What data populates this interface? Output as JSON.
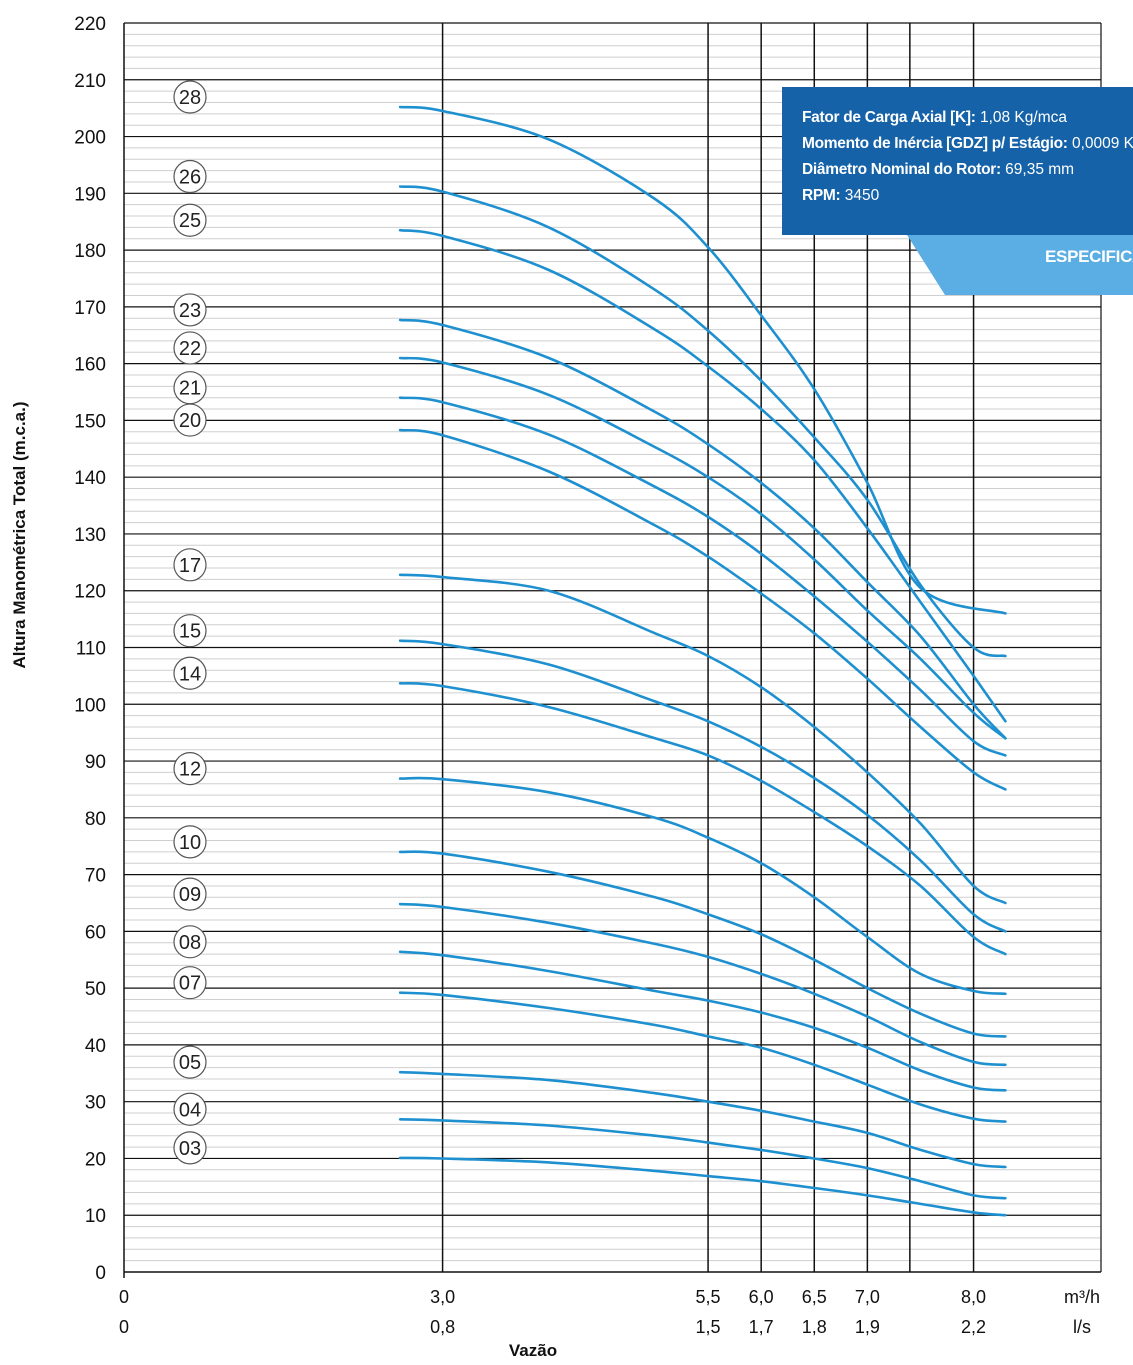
{
  "chart_data": {
    "type": "line",
    "ylabel": "Altura Manométrica Total (m.c.a.)",
    "xlabel": "Vazão",
    "ylim": [
      0,
      220
    ],
    "xlim": [
      0,
      9.2
    ],
    "y_ticks": [
      0,
      10,
      20,
      30,
      40,
      50,
      60,
      70,
      80,
      90,
      100,
      110,
      120,
      130,
      140,
      150,
      160,
      170,
      180,
      190,
      200,
      210,
      220
    ],
    "x_unit_primary": "m³/h",
    "x_unit_secondary": "l/s",
    "x_ticks": [
      {
        "value": 0,
        "label": "0",
        "label2": "0"
      },
      {
        "value": 3.0,
        "label": "3,0",
        "label2": "0,8"
      },
      {
        "value": 5.5,
        "label": "5,5",
        "label2": "1,5"
      },
      {
        "value": 6.0,
        "label": "6,0",
        "label2": "1,7"
      },
      {
        "value": 6.5,
        "label": "6,5",
        "label2": "1,8"
      },
      {
        "value": 7.0,
        "label": "7,0",
        "label2": "1,9"
      },
      {
        "value": 7.4,
        "label": "",
        "label2": ""
      },
      {
        "value": 8.0,
        "label": "8,0",
        "label2": "2,2"
      }
    ],
    "x": [
      2.6,
      3.0,
      4.0,
      5.0,
      5.5,
      6.0,
      6.5,
      7.0,
      7.5,
      8.0,
      8.3
    ],
    "series": [
      {
        "name": "28",
        "values": [
          205.2,
          204.5,
          199.5,
          189.0,
          180.5,
          168.5,
          155.5,
          139.0,
          120.5,
          null,
          null
        ],
        "x_end": 8.3,
        "y_end": 116
      },
      {
        "name": "26",
        "values": [
          191.2,
          190.3,
          184.0,
          173.0,
          165.8,
          157.0,
          147.0,
          136.0,
          121.0,
          110.0,
          108.5
        ]
      },
      {
        "name": "25",
        "values": [
          183.5,
          182.5,
          176.5,
          166.0,
          159.5,
          152.0,
          143.0,
          131.0,
          118.0,
          105.0,
          97.0
        ]
      },
      {
        "name": "23",
        "values": [
          167.7,
          166.8,
          161.0,
          151.5,
          145.8,
          139.0,
          131.0,
          121.5,
          112.0,
          100.0,
          94.0
        ]
      },
      {
        "name": "22",
        "values": [
          161.0,
          160.2,
          154.5,
          145.3,
          140.0,
          133.5,
          125.5,
          116.5,
          108.0,
          98.5,
          94.0
        ]
      },
      {
        "name": "21",
        "values": [
          154.0,
          153.2,
          147.5,
          138.3,
          133.0,
          126.5,
          119.0,
          111.0,
          102.5,
          93.5,
          91.0
        ]
      },
      {
        "name": "20",
        "values": [
          148.3,
          147.4,
          141.0,
          131.5,
          126.0,
          119.5,
          112.5,
          104.5,
          96.0,
          88.0,
          85.0
        ]
      },
      {
        "name": "17",
        "values": [
          122.8,
          122.4,
          120.0,
          112.5,
          108.5,
          103.0,
          96.0,
          88.0,
          79.0,
          68.0,
          65.0
        ]
      },
      {
        "name": "15",
        "values": [
          111.2,
          110.6,
          107.0,
          100.5,
          97.0,
          92.5,
          87.0,
          80.5,
          72.5,
          63.0,
          60.0
        ]
      },
      {
        "name": "14",
        "values": [
          103.7,
          103.2,
          99.5,
          94.0,
          91.0,
          86.5,
          81.0,
          75.0,
          68.0,
          59.0,
          56.0
        ]
      },
      {
        "name": "12",
        "values": [
          86.9,
          86.8,
          84.5,
          80.0,
          76.5,
          72.0,
          66.0,
          59.0,
          52.5,
          49.5,
          49.0
        ]
      },
      {
        "name": "10",
        "values": [
          74.0,
          73.7,
          70.5,
          66.0,
          63.0,
          59.5,
          55.0,
          50.0,
          45.5,
          42.0,
          41.5
        ]
      },
      {
        "name": "09",
        "values": [
          64.8,
          64.3,
          61.5,
          57.8,
          55.5,
          52.5,
          49.0,
          45.0,
          40.5,
          37.0,
          36.5
        ]
      },
      {
        "name": "08",
        "values": [
          56.4,
          55.8,
          53.0,
          49.5,
          47.8,
          45.7,
          43.0,
          39.5,
          35.5,
          32.5,
          32.0
        ]
      },
      {
        "name": "07",
        "values": [
          49.2,
          48.8,
          46.5,
          43.5,
          41.5,
          39.5,
          36.5,
          33.0,
          29.5,
          27.0,
          26.5
        ]
      },
      {
        "name": "05",
        "values": [
          35.2,
          34.9,
          33.8,
          31.5,
          30.0,
          28.4,
          26.5,
          24.5,
          21.5,
          19.0,
          18.5
        ]
      },
      {
        "name": "04",
        "values": [
          26.9,
          26.7,
          25.8,
          24.0,
          22.8,
          21.5,
          20.0,
          18.3,
          16.0,
          13.5,
          13.0
        ]
      },
      {
        "name": "03",
        "values": [
          20.1,
          20.0,
          19.3,
          17.8,
          16.9,
          16.0,
          14.8,
          13.5,
          12.0,
          10.5,
          10.0
        ]
      }
    ]
  },
  "info": {
    "k_label": "Fator de Carga Axial [K]:",
    "k_value": " 1,08 Kg/mca",
    "gdz_label": "Momento de Inércia [GDZ] p/ Estágio:",
    "gdz_value": " 0,0009 K",
    "diam_label": "Diâmetro Nominal do Rotor:",
    "diam_value": " 69,35 mm",
    "rpm_label": "RPM:",
    "rpm_value": " 3450",
    "tab_label": "ESPECIFICA"
  },
  "colors": {
    "curve": "#1e90d0",
    "box": "#1562a8",
    "tab": "#5aaee3",
    "grid": "#111111",
    "minor_grid": "#cfcfcf"
  }
}
